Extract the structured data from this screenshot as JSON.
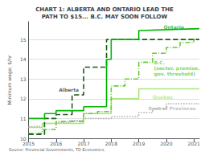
{
  "chart_data": {
    "type": "line",
    "title": "CHART 1: ALBERTA AND ONTARIO LEAD THE\nPATH TO $15... B.C. MAY SOON FOLLOW",
    "ylabel": "Minimum wage; $/hr",
    "source": "Source: Provincial Governments, TD Economics.",
    "xlim": [
      2015,
      2021.2
    ],
    "ylim": [
      10.0,
      15.9
    ],
    "xticks": [
      2015,
      2016,
      2017,
      2018,
      2019,
      2020,
      2021
    ],
    "yticks": [
      10,
      11,
      12,
      13,
      14,
      15
    ],
    "grid": true,
    "series": [
      {
        "color": "#b0b0b0",
        "line_style": "dotted",
        "x": [
          2015.0,
          2015.5,
          2015.5,
          2016.0,
          2016.0,
          2016.5,
          2016.5,
          2017.0,
          2017.0,
          2017.5,
          2017.5,
          2018.0,
          2018.0,
          2019.0,
          2019.0,
          2019.5,
          2019.5,
          2020.0,
          2020.0,
          2021.2
        ],
        "values": [
          10.6,
          10.6,
          10.75,
          10.75,
          10.8,
          10.8,
          10.9,
          10.9,
          11.0,
          11.0,
          11.0,
          11.0,
          11.1,
          11.1,
          11.3,
          11.3,
          11.5,
          11.5,
          11.75,
          11.75
        ]
      },
      {
        "color": "#aae67a",
        "line_style": "solid",
        "x": [
          2015.0,
          2015.5,
          2015.5,
          2016.0,
          2016.0,
          2016.5,
          2016.5,
          2017.0,
          2017.0,
          2017.83,
          2017.83,
          2018.0,
          2018.0,
          2018.5,
          2018.5,
          2019.0,
          2019.0,
          2021.2
        ],
        "values": [
          10.55,
          10.55,
          10.75,
          10.75,
          10.75,
          10.75,
          10.75,
          10.75,
          11.25,
          11.25,
          11.25,
          11.25,
          12.0,
          12.0,
          12.0,
          12.0,
          12.5,
          12.5
        ]
      },
      {
        "color": "#66cc33",
        "line_style": "dashdot",
        "x": [
          2015.0,
          2015.5,
          2015.5,
          2016.0,
          2016.0,
          2016.5,
          2016.5,
          2017.0,
          2017.0,
          2017.5,
          2017.5,
          2018.0,
          2018.0,
          2018.5,
          2018.5,
          2019.0,
          2019.0,
          2019.5,
          2019.5,
          2020.0,
          2020.0,
          2020.5,
          2020.5,
          2021.0,
          2021.0,
          2021.2
        ],
        "values": [
          10.25,
          10.25,
          10.45,
          10.45,
          10.85,
          10.85,
          10.85,
          10.85,
          11.25,
          11.25,
          11.35,
          11.35,
          12.65,
          12.65,
          13.0,
          13.0,
          13.85,
          13.85,
          14.3,
          14.3,
          14.6,
          14.6,
          14.85,
          14.85,
          15.0,
          15.0
        ]
      },
      {
        "color": "#1a5c1a",
        "line_style": "dashed",
        "x": [
          2015.0,
          2015.0,
          2015.58,
          2015.58,
          2016.0,
          2016.0,
          2016.58,
          2016.58,
          2017.0,
          2017.0,
          2017.83,
          2017.83,
          2021.2
        ],
        "values": [
          10.2,
          10.2,
          10.2,
          11.0,
          11.0,
          11.2,
          11.2,
          12.2,
          12.2,
          13.6,
          13.6,
          15.0,
          15.0
        ]
      },
      {
        "color": "#00b300",
        "line_style": "solid",
        "x": [
          2015.0,
          2015.58,
          2015.58,
          2016.0,
          2016.0,
          2017.0,
          2017.0,
          2017.83,
          2017.83,
          2018.0,
          2018.0,
          2019.0,
          2019.0,
          2021.2
        ],
        "values": [
          11.0,
          11.0,
          11.25,
          11.25,
          11.4,
          11.4,
          11.6,
          11.6,
          14.0,
          14.0,
          15.0,
          15.0,
          15.45,
          15.55
        ]
      }
    ],
    "annotations": [
      {
        "text": "Ontario",
        "x": 2019.9,
        "y": 15.62,
        "color": "#00b300"
      },
      {
        "text": "Alberta",
        "x": 2016.1,
        "y": 12.45,
        "color": "#333333"
      },
      {
        "text": "B.C.\n(sector, promise,\ngov. threshold)",
        "x": 2019.55,
        "y": 13.55,
        "color": "#66cc33"
      },
      {
        "text": "Quebec",
        "x": 2019.5,
        "y": 12.1,
        "color": "#aae67a"
      },
      {
        "text": "Rest of Provinces",
        "x": 2019.35,
        "y": 11.52,
        "color": "#b0b0b0"
      }
    ]
  }
}
